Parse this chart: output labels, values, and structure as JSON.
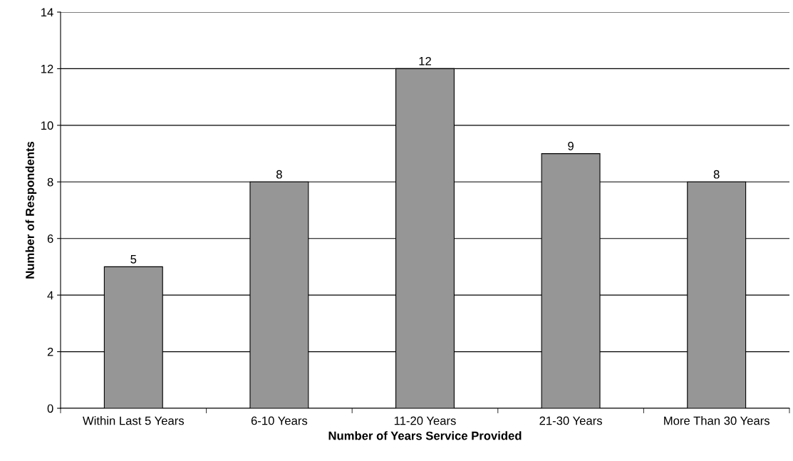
{
  "chart_data": {
    "type": "bar",
    "xlabel": "Number of Years Service Provided",
    "ylabel": "Number of Respondents",
    "categories": [
      "Within Last 5 Years",
      "6-10 Years",
      "11-20 Years",
      "21-30 Years",
      "More Than 30 Years"
    ],
    "values": [
      5,
      8,
      12,
      9,
      8
    ],
    "color": "#969696",
    "ylim": [
      0,
      14
    ],
    "yticks": [
      0,
      2,
      4,
      6,
      8,
      10,
      12,
      14
    ],
    "grid": "y",
    "data_labels": true
  }
}
